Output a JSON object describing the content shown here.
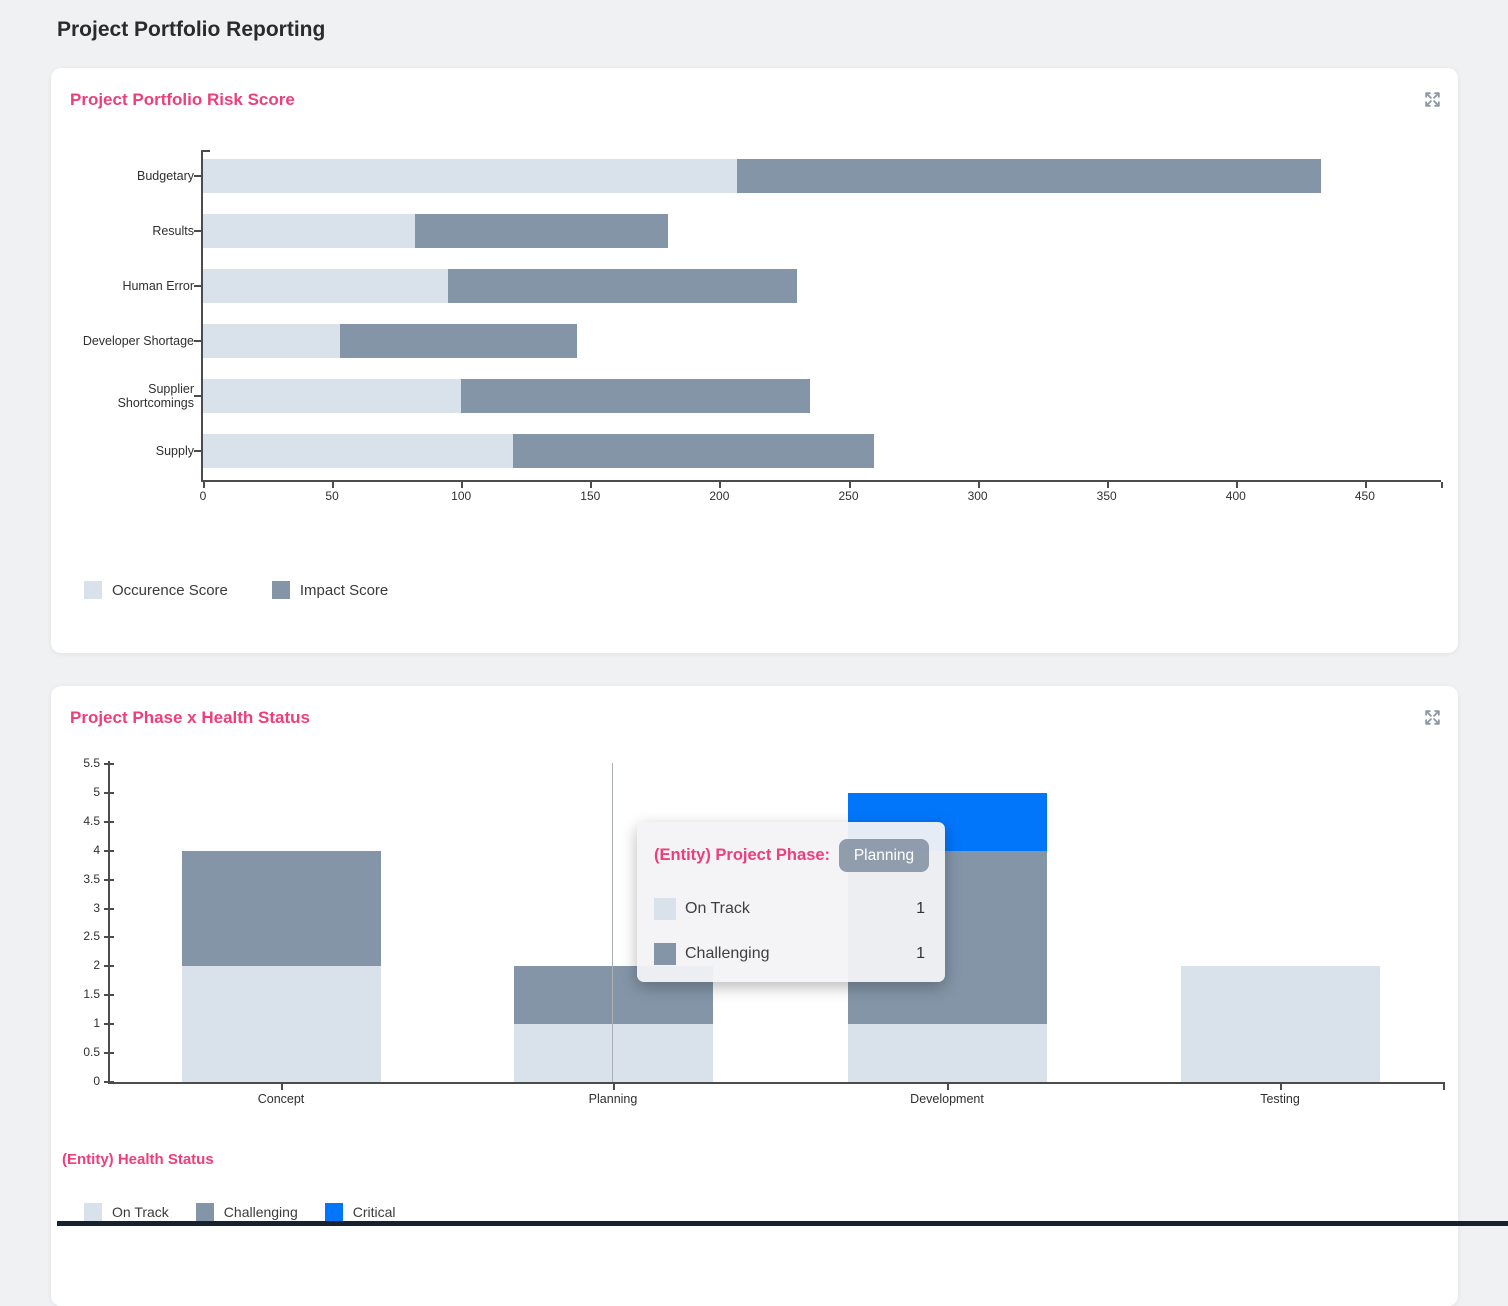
{
  "page": {
    "title": "Project Portfolio Reporting",
    "background": "#f0f1f3",
    "accent_pink": "#ef3e78",
    "bottom_bar_color": "#16232f"
  },
  "risk_card": {
    "title": "Project Portfolio Risk Score",
    "icon": "expand-icon",
    "legend": [
      {
        "label": "Occurence Score",
        "color": "#d9e1eb"
      },
      {
        "label": "Impact Score",
        "color": "#8395a7"
      }
    ]
  },
  "phase_card": {
    "title": "Project Phase x Health Status",
    "icon": "expand-icon",
    "axis_title": "(Entity) Health Status",
    "legend": [
      {
        "label": "On Track",
        "color": "#d9e1eb"
      },
      {
        "label": "Challenging",
        "color": "#8395a7"
      },
      {
        "label": "Critical",
        "color": "#0276fb"
      }
    ],
    "tooltip": {
      "heading": "(Entity) Project Phase:",
      "badge": "Planning",
      "rows": [
        {
          "label": "On Track",
          "color": "#d9e1eb",
          "value": "1"
        },
        {
          "label": "Challenging",
          "color": "#8395a7",
          "value": "1"
        }
      ]
    }
  },
  "chart_data": [
    {
      "type": "bar",
      "orientation": "horizontal",
      "stacked": true,
      "title": "Project Portfolio Risk Score",
      "categories": [
        "Budgetary",
        "Results",
        "Human Error",
        "Developer Shortage",
        "Supplier Shortcomings",
        "Supply"
      ],
      "series": [
        {
          "name": "Occurence Score",
          "color": "#d9e1eb",
          "values": [
            207,
            82,
            95,
            53,
            100,
            120
          ]
        },
        {
          "name": "Impact Score",
          "color": "#8395a7",
          "values": [
            226,
            98,
            135,
            92,
            135,
            140
          ]
        }
      ],
      "xlim": [
        0,
        478
      ],
      "x_ticks": [
        0,
        50,
        100,
        150,
        200,
        250,
        300,
        350,
        400,
        450
      ],
      "grid": false,
      "legend_position": "bottom"
    },
    {
      "type": "bar",
      "orientation": "vertical",
      "stacked": true,
      "title": "Project Phase x Health Status",
      "categories": [
        "Concept",
        "Planning",
        "Development",
        "Testing"
      ],
      "series": [
        {
          "name": "On Track",
          "color": "#d9e1eb",
          "values": [
            2,
            1,
            1,
            2
          ]
        },
        {
          "name": "Challenging",
          "color": "#8395a7",
          "values": [
            2,
            1,
            3,
            0
          ]
        },
        {
          "name": "Critical",
          "color": "#0276fb",
          "values": [
            0,
            0,
            1,
            0
          ]
        }
      ],
      "ylim": [
        0,
        5.5
      ],
      "y_ticks": [
        0,
        0.5,
        1,
        1.5,
        2,
        2.5,
        3,
        3.5,
        4,
        4.5,
        5,
        5.5
      ],
      "grid": false,
      "legend_position": "bottom",
      "legend_title": "(Entity) Health Status",
      "highlighted_category": "Planning"
    }
  ]
}
